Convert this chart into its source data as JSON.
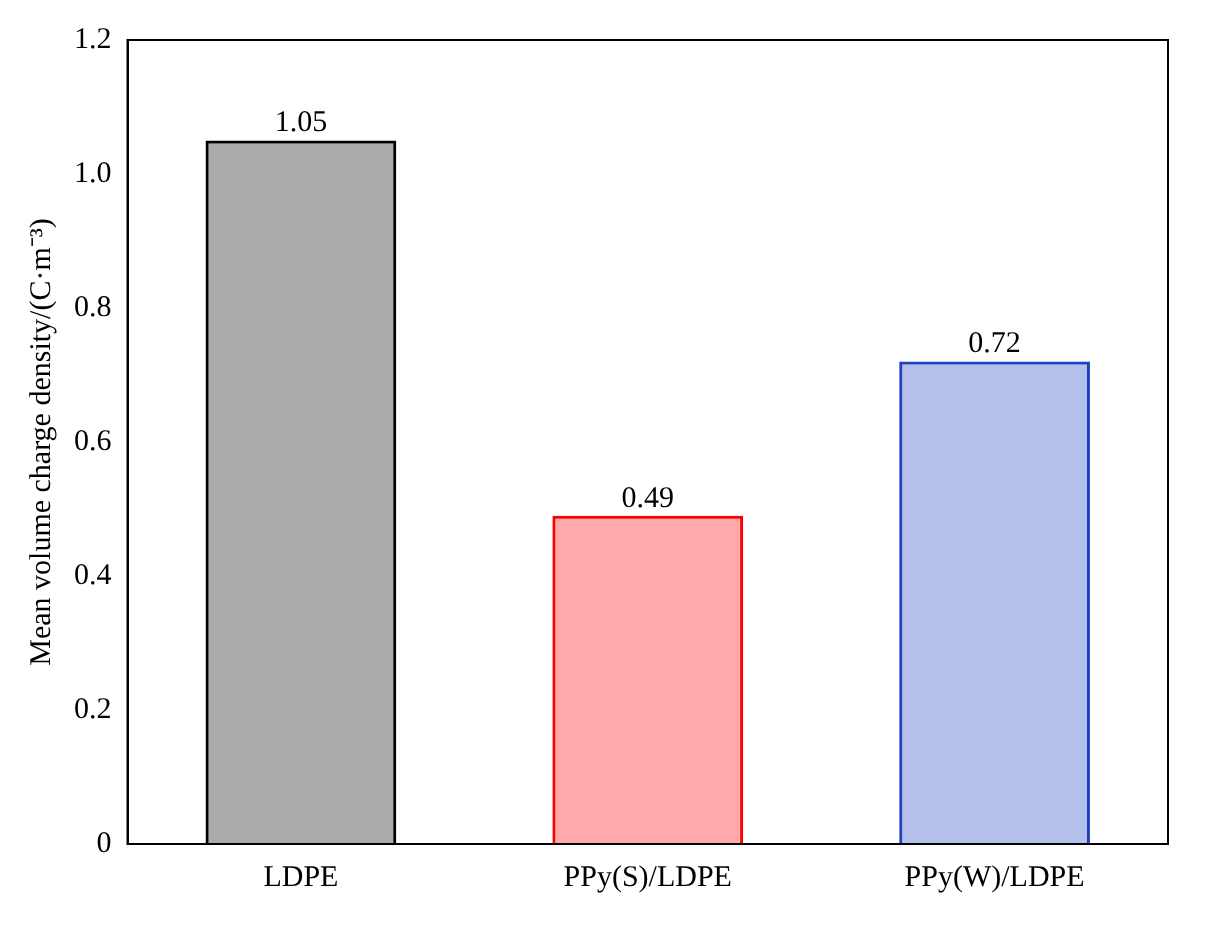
{
  "chart_data": {
    "type": "bar",
    "ylabel": "Mean volume charge density/(C·m⁻³)",
    "categories": [
      "LDPE",
      "PPy(S)/LDPE",
      "PPy(W)/LDPE"
    ],
    "values": [
      1.05,
      0.49,
      0.72
    ],
    "colors": [
      "#000000",
      "#ff0000",
      "#1f3fbf"
    ],
    "ylim": [
      0,
      1.2
    ],
    "yticks": [
      0,
      0.2,
      0.4,
      0.6,
      0.8,
      {
        "value": 1,
        "label": "1.0"
      },
      1.2
    ],
    "data_labels": true,
    "grid": false,
    "legend": false
  }
}
